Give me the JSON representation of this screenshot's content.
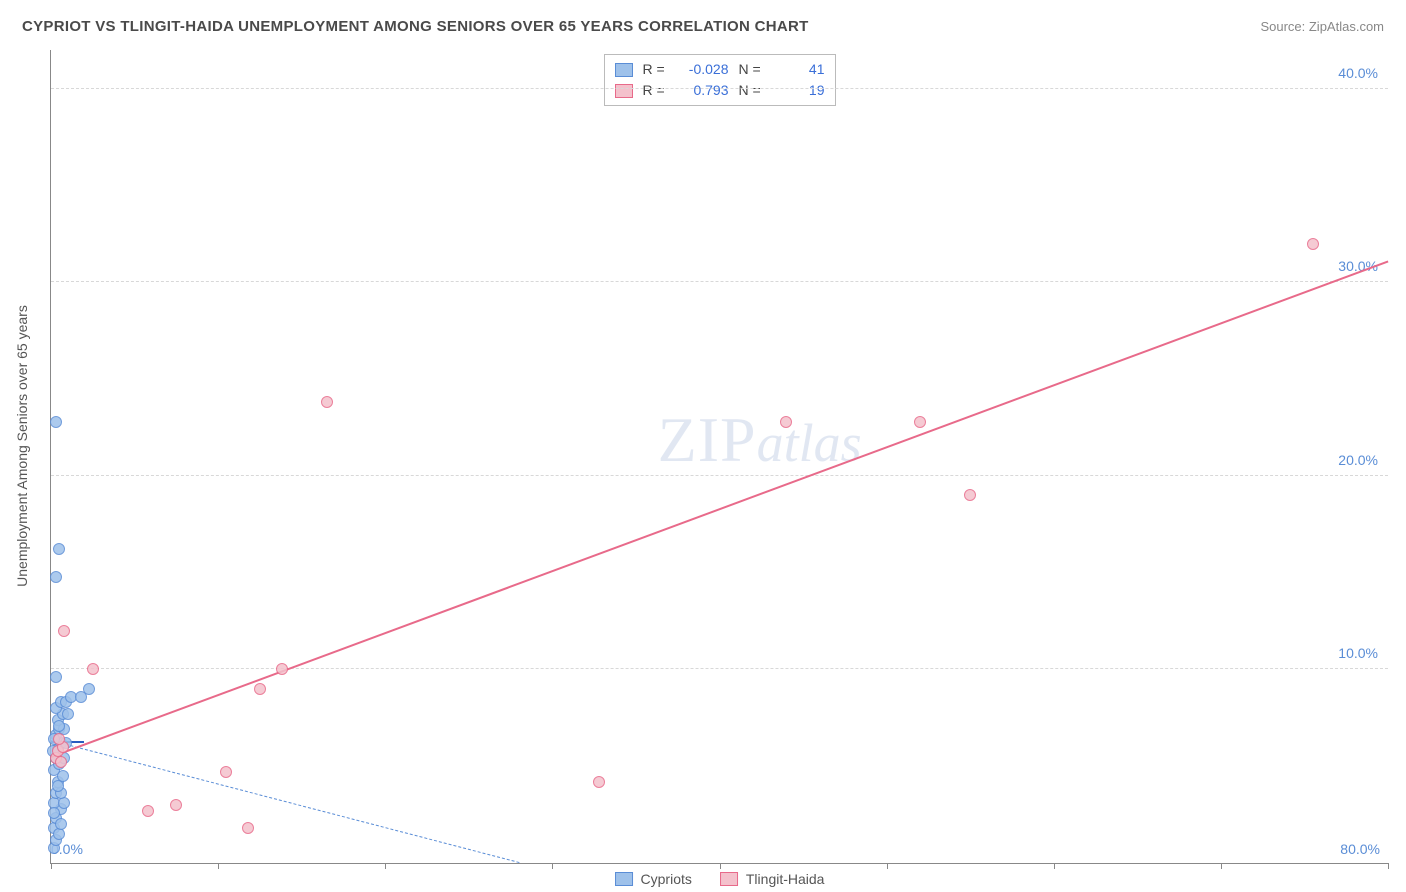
{
  "header": {
    "title": "CYPRIOT VS TLINGIT-HAIDA UNEMPLOYMENT AMONG SENIORS OVER 65 YEARS CORRELATION CHART",
    "source": "Source: ZipAtlas.com"
  },
  "watermark": {
    "part1": "ZIP",
    "part2": "atlas"
  },
  "chart": {
    "type": "scatter",
    "background_color": "#ffffff",
    "grid_color": "#d8d8d8",
    "axis_color": "#888888",
    "label_color": "#555555",
    "tick_label_color": "#5a8dd6",
    "ylabel": "Unemployment Among Seniors over 65 years",
    "ylabel_fontsize": 14,
    "xlim": [
      0,
      80
    ],
    "ylim": [
      0,
      42
    ],
    "xticks": [
      0,
      10,
      20,
      30,
      40,
      50,
      60,
      70,
      80
    ],
    "xtick_labels_visible": {
      "0": "0.0%",
      "80": "80.0%"
    },
    "yticks": [
      10,
      20,
      30,
      40
    ],
    "ytick_labels": [
      "10.0%",
      "20.0%",
      "30.0%",
      "40.0%"
    ],
    "marker_radius": 6,
    "marker_stroke_width": 1,
    "fill_opacity": 0.35,
    "series": [
      {
        "name": "Cypriots",
        "color_fill": "#9ec1ea",
        "color_stroke": "#5a8dd6",
        "r_value": "-0.028",
        "n_value": "41",
        "trend": {
          "x1": 0.0,
          "y1": 6.3,
          "x2": 28.0,
          "y2": 0.0,
          "style": "dashed",
          "color": "#5a8dd6",
          "width": 1.5
        },
        "trend_start_segment": {
          "x1": 0.0,
          "y1": 6.2,
          "x2": 2.0,
          "y2": 6.2,
          "style": "solid",
          "color": "#2a5cc0",
          "width": 2.5
        },
        "points": [
          {
            "x": 0.2,
            "y": 0.8
          },
          {
            "x": 0.3,
            "y": 1.2
          },
          {
            "x": 0.2,
            "y": 1.8
          },
          {
            "x": 0.5,
            "y": 1.5
          },
          {
            "x": 0.3,
            "y": 2.3
          },
          {
            "x": 0.6,
            "y": 2.0
          },
          {
            "x": 0.6,
            "y": 2.8
          },
          {
            "x": 0.2,
            "y": 3.1
          },
          {
            "x": 0.8,
            "y": 3.1
          },
          {
            "x": 0.3,
            "y": 3.6
          },
          {
            "x": 0.6,
            "y": 3.6
          },
          {
            "x": 0.4,
            "y": 4.2
          },
          {
            "x": 0.7,
            "y": 4.5
          },
          {
            "x": 0.2,
            "y": 4.8
          },
          {
            "x": 0.5,
            "y": 5.1
          },
          {
            "x": 0.3,
            "y": 5.4
          },
          {
            "x": 0.8,
            "y": 5.4
          },
          {
            "x": 0.4,
            "y": 5.9
          },
          {
            "x": 0.6,
            "y": 6.2
          },
          {
            "x": 0.9,
            "y": 6.2
          },
          {
            "x": 0.3,
            "y": 6.6
          },
          {
            "x": 0.5,
            "y": 6.9
          },
          {
            "x": 0.8,
            "y": 6.9
          },
          {
            "x": 0.4,
            "y": 7.4
          },
          {
            "x": 0.7,
            "y": 7.7
          },
          {
            "x": 1.0,
            "y": 7.7
          },
          {
            "x": 0.3,
            "y": 8.0
          },
          {
            "x": 0.6,
            "y": 8.3
          },
          {
            "x": 0.9,
            "y": 8.3
          },
          {
            "x": 1.2,
            "y": 8.6
          },
          {
            "x": 1.8,
            "y": 8.6
          },
          {
            "x": 2.3,
            "y": 9.0
          },
          {
            "x": 0.3,
            "y": 9.6
          },
          {
            "x": 0.3,
            "y": 14.8
          },
          {
            "x": 0.5,
            "y": 16.2
          },
          {
            "x": 0.3,
            "y": 22.8
          },
          {
            "x": 0.1,
            "y": 5.8
          },
          {
            "x": 0.2,
            "y": 6.4
          },
          {
            "x": 0.4,
            "y": 4.0
          },
          {
            "x": 0.2,
            "y": 2.6
          },
          {
            "x": 0.5,
            "y": 7.1
          }
        ]
      },
      {
        "name": "Tlingit-Haida",
        "color_fill": "#f4c1cc",
        "color_stroke": "#e86a8a",
        "r_value": "0.793",
        "n_value": "19",
        "trend": {
          "x1": 0.0,
          "y1": 5.4,
          "x2": 80.0,
          "y2": 31.0,
          "style": "solid",
          "color": "#e86a8a",
          "width": 2.5
        },
        "points": [
          {
            "x": 0.3,
            "y": 5.4
          },
          {
            "x": 0.4,
            "y": 5.8
          },
          {
            "x": 0.6,
            "y": 5.2
          },
          {
            "x": 0.7,
            "y": 6.0
          },
          {
            "x": 0.5,
            "y": 6.4
          },
          {
            "x": 0.8,
            "y": 12.0
          },
          {
            "x": 2.5,
            "y": 10.0
          },
          {
            "x": 5.8,
            "y": 2.7
          },
          {
            "x": 7.5,
            "y": 3.0
          },
          {
            "x": 10.5,
            "y": 4.7
          },
          {
            "x": 11.8,
            "y": 1.8
          },
          {
            "x": 12.5,
            "y": 9.0
          },
          {
            "x": 13.8,
            "y": 10.0
          },
          {
            "x": 16.5,
            "y": 23.8
          },
          {
            "x": 32.8,
            "y": 4.2
          },
          {
            "x": 44.0,
            "y": 22.8
          },
          {
            "x": 52.0,
            "y": 22.8
          },
          {
            "x": 55.0,
            "y": 19.0
          },
          {
            "x": 75.5,
            "y": 32.0
          }
        ]
      }
    ]
  },
  "stats_box": {
    "r_label": "R =",
    "n_label": "N ="
  },
  "legend": {
    "items": [
      "Cypriots",
      "Tlingit-Haida"
    ]
  }
}
